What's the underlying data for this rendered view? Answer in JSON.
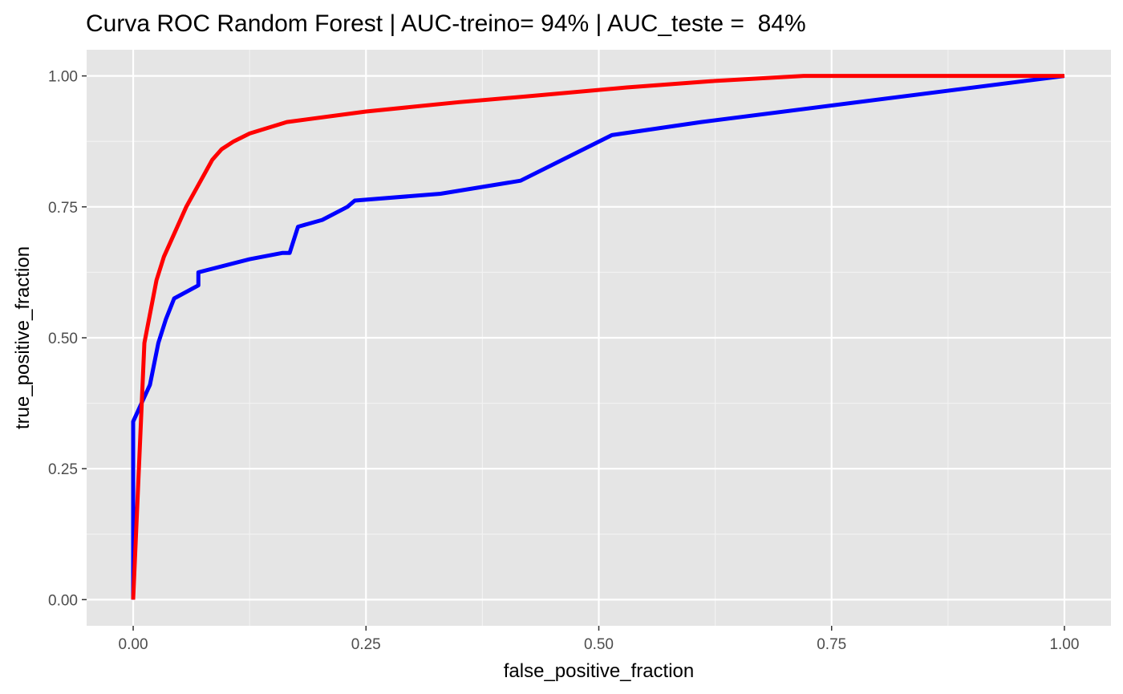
{
  "chart_data": {
    "type": "line",
    "title": "Curva ROC Random Forest | AUC-treino= 94% | AUC_teste =  84%",
    "xlabel": "false_positive_fraction",
    "ylabel": "true_positive_fraction",
    "xlim": [
      -0.05,
      1.05
    ],
    "ylim": [
      -0.05,
      1.05
    ],
    "x_ticks": [
      0.0,
      0.25,
      0.5,
      0.75,
      1.0
    ],
    "x_tick_labels": [
      "0.00",
      "0.25",
      "0.50",
      "0.75",
      "1.00"
    ],
    "y_ticks": [
      0.0,
      0.25,
      0.5,
      0.75,
      1.0
    ],
    "y_tick_labels": [
      "0.00",
      "0.25",
      "0.50",
      "0.75",
      "1.00"
    ],
    "grid": true,
    "legend": "none",
    "series": [
      {
        "color": "#0000ff",
        "points": [
          [
            0.0,
            0.0
          ],
          [
            0.0,
            0.34
          ],
          [
            0.018,
            0.41
          ],
          [
            0.027,
            0.49
          ],
          [
            0.035,
            0.535
          ],
          [
            0.044,
            0.575
          ],
          [
            0.07,
            0.6
          ],
          [
            0.07,
            0.625
          ],
          [
            0.125,
            0.65
          ],
          [
            0.16,
            0.662
          ],
          [
            0.168,
            0.662
          ],
          [
            0.177,
            0.712
          ],
          [
            0.203,
            0.725
          ],
          [
            0.23,
            0.75
          ],
          [
            0.238,
            0.762
          ],
          [
            0.33,
            0.775
          ],
          [
            0.416,
            0.8
          ],
          [
            0.514,
            0.887
          ],
          [
            0.61,
            0.912
          ],
          [
            1.0,
            1.0
          ]
        ]
      },
      {
        "color": "#ff0000",
        "points": [
          [
            0.0,
            0.0
          ],
          [
            0.012,
            0.49
          ],
          [
            0.025,
            0.61
          ],
          [
            0.033,
            0.655
          ],
          [
            0.057,
            0.75
          ],
          [
            0.085,
            0.84
          ],
          [
            0.095,
            0.86
          ],
          [
            0.108,
            0.875
          ],
          [
            0.125,
            0.89
          ],
          [
            0.165,
            0.912
          ],
          [
            0.25,
            0.932
          ],
          [
            0.35,
            0.95
          ],
          [
            0.43,
            0.962
          ],
          [
            0.53,
            0.978
          ],
          [
            0.62,
            0.99
          ],
          [
            0.72,
            1.0
          ],
          [
            1.0,
            1.0
          ]
        ]
      }
    ]
  }
}
